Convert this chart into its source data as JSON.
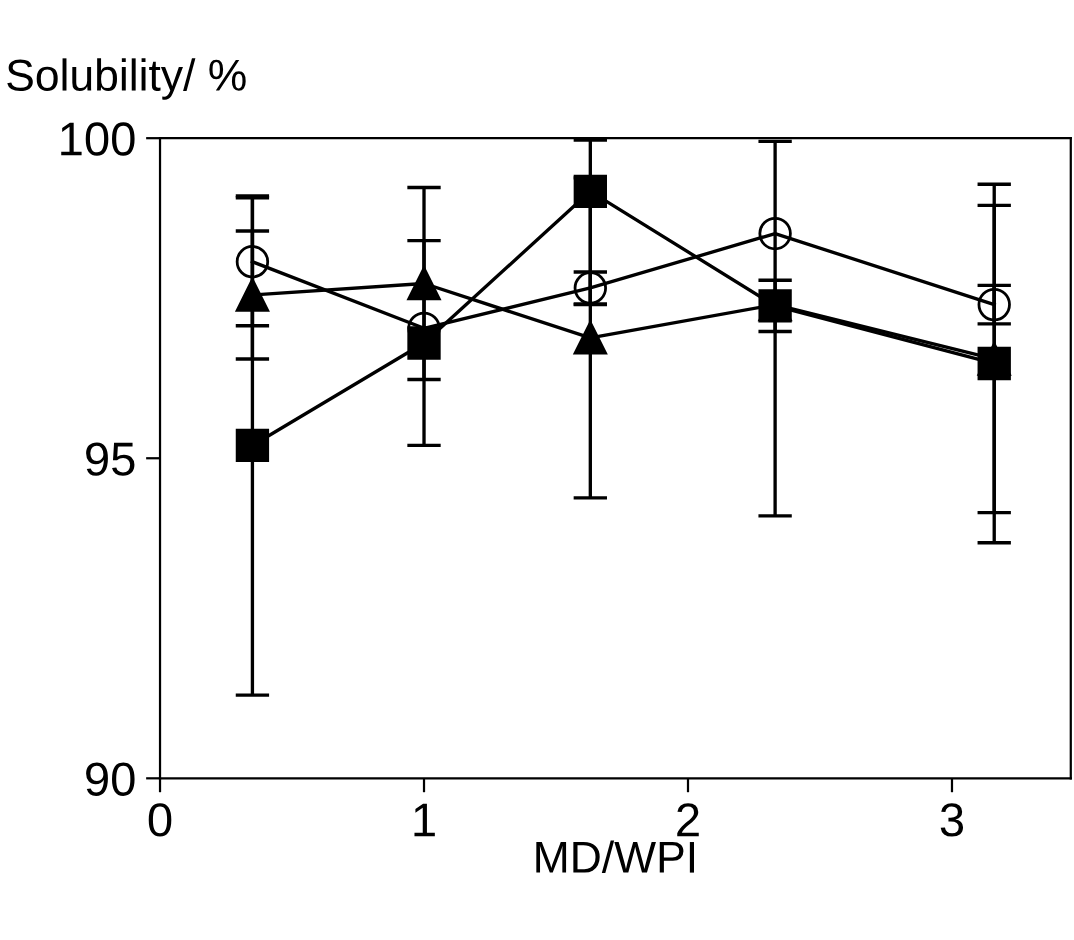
{
  "chart_data": {
    "type": "line",
    "xlabel": "MD/WPI",
    "ylabel": "Solubility/ %",
    "xlim": [
      0,
      3.45
    ],
    "ylim": [
      90,
      100
    ],
    "xticks": [
      0,
      1,
      2,
      3
    ],
    "yticks": [
      90,
      95,
      100
    ],
    "grid": false,
    "legend": false,
    "series": [
      {
        "color": "#000000",
        "marker": "circle",
        "x": [
          0.35,
          1.0,
          1.63,
          2.33,
          3.16
        ],
        "values": [
          98.07,
          97.03,
          97.66,
          98.51,
          97.4
        ],
        "errors": [
          1.0,
          null,
          0.25,
          [
            94.1,
            99.95
          ],
          0.3
        ]
      },
      {
        "color": "#000000",
        "marker": "triangle",
        "x": [
          0.35,
          1.0,
          1.63,
          2.33,
          3.16
        ],
        "values": [
          97.55,
          97.73,
          96.88,
          97.4,
          96.55
        ],
        "errors": [
          1.0,
          1.5,
          2.5,
          null,
          2.4
        ]
      },
      {
        "color": "#000000",
        "marker": "square",
        "x": [
          0.35,
          1.0,
          1.63,
          2.33,
          3.16
        ],
        "values": [
          95.2,
          96.8,
          99.17,
          97.38,
          96.48
        ],
        "errors": [
          3.9,
          1.6,
          [
            97.4,
            99.97
          ],
          0.4,
          2.8
        ]
      }
    ]
  }
}
